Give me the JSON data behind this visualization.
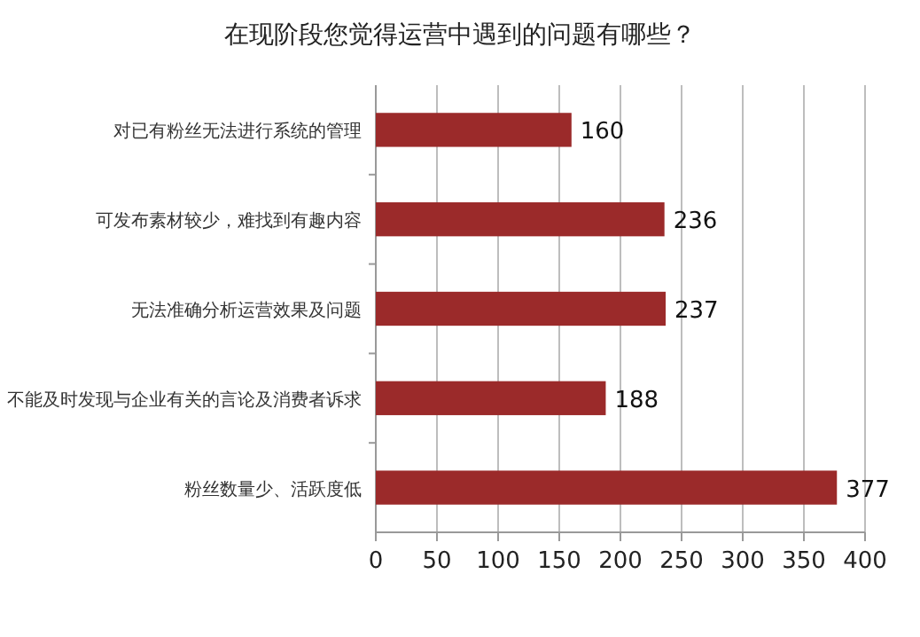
{
  "chart_data": {
    "type": "bar",
    "orientation": "horizontal",
    "title": "在现阶段您觉得运营中遇到的问题有哪些？",
    "categories": [
      "对已有粉丝无法进行系统的管理",
      "可发布素材较少，难找到有趣内容",
      "无法准确分析运营效果及问题",
      "不能及时发现与企业有关的言论及消费者诉求",
      "粉丝数量少、活跃度低"
    ],
    "values": [
      160,
      236,
      237,
      188,
      377
    ],
    "color": "#9b2a2a",
    "xlim": [
      0,
      400
    ],
    "xticks": [
      0,
      50,
      100,
      150,
      200,
      250,
      300,
      350,
      400
    ],
    "grid": "x",
    "data_labels": true
  }
}
